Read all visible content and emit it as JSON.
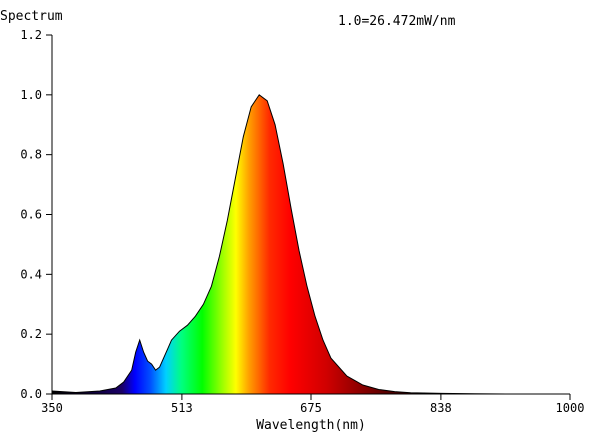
{
  "chart_data": {
    "type": "area",
    "title": "",
    "ylabel": "Spectrum",
    "xlabel": "Wavelength(nm)",
    "annotation": "1.0=26.472mW/nm",
    "xlim": [
      350,
      1000
    ],
    "ylim": [
      0,
      1.2
    ],
    "x_ticks": [
      "350",
      "513",
      "675",
      "838",
      "1000"
    ],
    "y_ticks": [
      "0.0",
      "0.2",
      "0.4",
      "0.6",
      "0.8",
      "1.0",
      "1.2"
    ],
    "grid": false,
    "x": [
      350,
      380,
      410,
      430,
      440,
      450,
      455,
      460,
      465,
      470,
      475,
      480,
      485,
      490,
      495,
      500,
      510,
      520,
      530,
      540,
      550,
      560,
      570,
      580,
      590,
      600,
      610,
      620,
      630,
      640,
      650,
      660,
      670,
      680,
      690,
      700,
      720,
      740,
      760,
      780,
      800,
      840,
      880,
      920,
      1000
    ],
    "y": [
      0.01,
      0.005,
      0.01,
      0.02,
      0.04,
      0.08,
      0.14,
      0.18,
      0.14,
      0.11,
      0.1,
      0.08,
      0.09,
      0.12,
      0.15,
      0.18,
      0.21,
      0.23,
      0.26,
      0.3,
      0.36,
      0.46,
      0.58,
      0.72,
      0.86,
      0.96,
      1.0,
      0.98,
      0.9,
      0.77,
      0.62,
      0.48,
      0.36,
      0.26,
      0.18,
      0.12,
      0.06,
      0.03,
      0.015,
      0.008,
      0.004,
      0.002,
      0.001,
      0.0,
      0.0
    ]
  }
}
